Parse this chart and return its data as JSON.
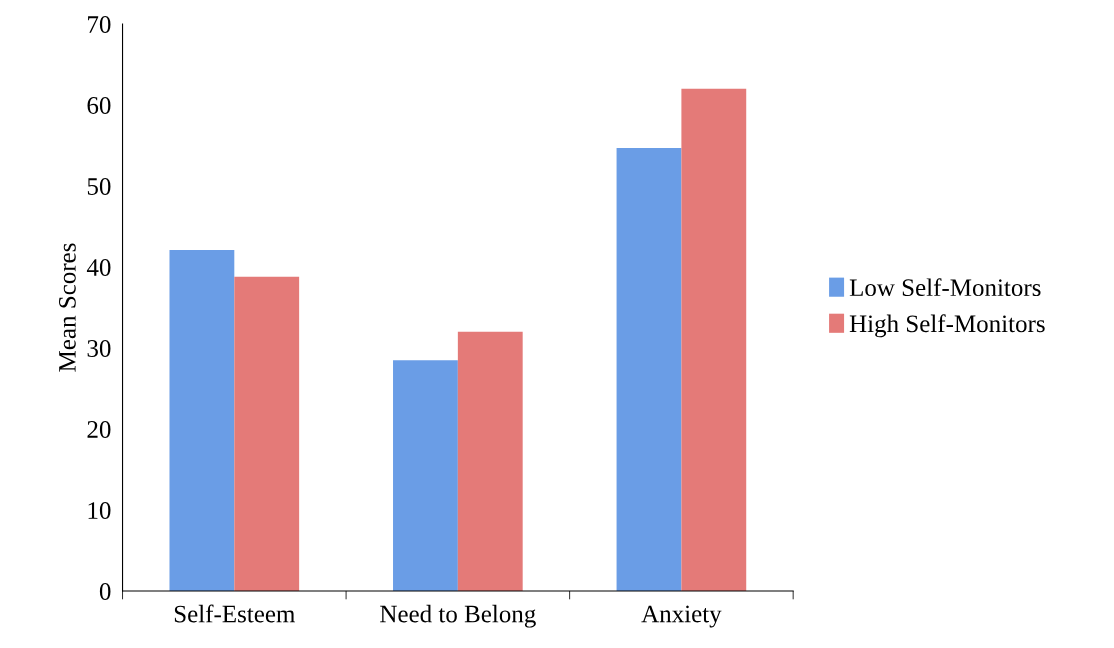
{
  "chart_data": {
    "type": "bar",
    "ylabel": "Mean Scores",
    "categories": [
      "Self-Esteem",
      "Need to Belong",
      "Anxiety"
    ],
    "series": [
      {
        "name": "Low Self-Monitors",
        "color": "#6a9de6",
        "values": [
          42.1,
          28.5,
          54.7
        ]
      },
      {
        "name": "High Self-Monitors",
        "color": "#e47a78",
        "values": [
          38.8,
          32.0,
          62.0
        ]
      }
    ],
    "ylim": [
      0,
      70
    ],
    "yticks": [
      0,
      10,
      20,
      30,
      40,
      50,
      60,
      70
    ],
    "grid": false,
    "legend": "right"
  }
}
